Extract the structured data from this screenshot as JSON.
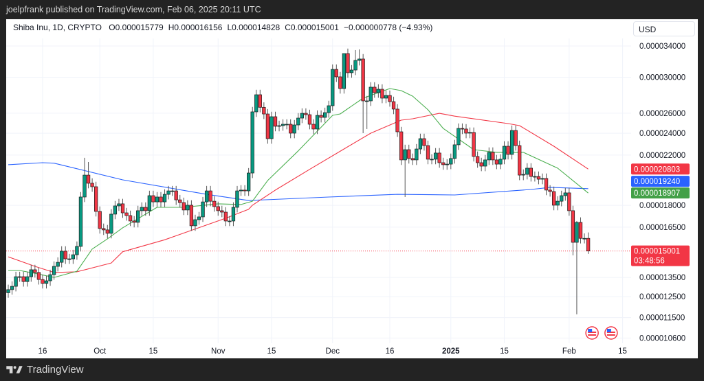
{
  "attribution": "joelpfrank published on TradingView.com, Feb 06, 2025 20:11 UTC",
  "legend": {
    "symbol": "Shiba Inu, 1D, CRYPTO",
    "open": "O0.000015779",
    "high": "H0.000016156",
    "low": "L0.000014828",
    "close": "C0.000015001",
    "change": "−0.000000778 (−4.93%)"
  },
  "currency": "USD",
  "footer_brand": "TradingView",
  "colors": {
    "up": "#089981",
    "down": "#f23645",
    "ma_blue": "#2962ff",
    "ma_red": "#f23645",
    "ma_green": "#4caf50"
  },
  "chart_data": {
    "type": "candlestick",
    "y_scale": "log",
    "ylim": [
      1.04e-05,
      3.5e-05
    ],
    "grid": true,
    "last_date": "2025-02-06",
    "first_open": 1.27e-05,
    "closes": [
      1.286e-05,
      1.303e-05,
      1.354e-05,
      1.354e-05,
      1.328e-05,
      1.354e-05,
      1.392e-05,
      1.377e-05,
      1.339e-05,
      1.318e-05,
      1.332e-05,
      1.365e-05,
      1.411e-05,
      1.434e-05,
      1.499e-05,
      1.454e-05,
      1.454e-05,
      1.478e-05,
      1.528e-05,
      1.861e-05,
      2.031e-05,
      1.966e-05,
      1.939e-05,
      1.757e-05,
      1.641e-05,
      1.632e-05,
      1.61e-05,
      1.738e-05,
      1.796e-05,
      1.811e-05,
      1.747e-05,
      1.728e-05,
      1.691e-05,
      1.682e-05,
      1.762e-05,
      1.786e-05,
      1.762e-05,
      1.871e-05,
      1.825e-05,
      1.861e-05,
      1.825e-05,
      1.881e-05,
      1.907e-05,
      1.907e-05,
      1.84e-05,
      1.82e-05,
      1.767e-05,
      1.801e-05,
      1.659e-05,
      1.7e-05,
      1.719e-05,
      1.825e-05,
      1.907e-05,
      1.83e-05,
      1.791e-05,
      1.762e-05,
      1.752e-05,
      1.691e-05,
      1.691e-05,
      1.786e-05,
      1.907e-05,
      1.913e-05,
      1.907e-05,
      2.048e-05,
      2.614e-05,
      2.799e-05,
      2.662e-05,
      2.592e-05,
      2.349e-05,
      2.564e-05,
      2.468e-05,
      2.474e-05,
      2.488e-05,
      2.488e-05,
      2.401e-05,
      2.481e-05,
      2.55e-05,
      2.599e-05,
      2.585e-05,
      2.488e-05,
      2.441e-05,
      2.578e-05,
      2.557e-05,
      2.606e-05,
      2.679e-05,
      3.097e-05,
      3.006e-05,
      2.869e-05,
      3.299e-05,
      3.056e-05,
      3.089e-05,
      3.21e-05,
      3.228e-05,
      2.731e-05,
      2.731e-05,
      2.885e-05,
      2.822e-05,
      2.861e-05,
      2.761e-05,
      2.791e-05,
      2.723e-05,
      2.643e-05,
      2.414e-05,
      2.158e-05,
      2.248e-05,
      2.17e-05,
      2.158e-05,
      2.254e-05,
      2.349e-05,
      2.285e-05,
      2.164e-05,
      2.164e-05,
      2.218e-05,
      2.134e-05,
      2.117e-05,
      2.122e-05,
      2.17e-05,
      2.292e-05,
      2.447e-05,
      2.441e-05,
      2.401e-05,
      2.408e-05,
      2.188e-05,
      2.134e-05,
      2.105e-05,
      2.158e-05,
      2.224e-05,
      2.158e-05,
      2.122e-05,
      2.164e-05,
      2.279e-05,
      2.206e-05,
      2.427e-05,
      2.285e-05,
      2.031e-05,
      2.037e-05,
      2.088e-05,
      2.02e-05,
      2.02e-05,
      1.998e-05,
      2.004e-05,
      1.913e-05,
      1.902e-05,
      1.801e-05,
      1.83e-05,
      1.871e-05,
      1.892e-05,
      1.762e-05,
      1.553e-05,
      1.682e-05,
      1.5779e-05,
      1.5779e-05,
      1.5001e-05
    ],
    "wick_overrides": [
      {
        "index": 20,
        "high": 2.176e-05
      },
      {
        "index": 21,
        "high": 2.14e-05
      },
      {
        "index": 88,
        "high": 3.299e-05
      },
      {
        "index": 91,
        "high": 3.345e-05
      },
      {
        "index": 92,
        "high": 3.354e-05
      },
      {
        "index": 93,
        "low": 2.401e-05
      },
      {
        "index": 94,
        "low": 2.441e-05
      },
      {
        "index": 104,
        "low": 1.861e-05
      },
      {
        "index": 148,
        "low": 1.474e-05
      },
      {
        "index": 149,
        "low": 1.165e-05,
        "high": 1.69e-05
      },
      {
        "index": 152,
        "high": 1.6156e-05,
        "low": 1.4828e-05
      }
    ],
    "moving_averages": [
      {
        "color": "#2962ff",
        "points": [
          [
            0,
            2.117e-05
          ],
          [
            9,
            2.134e-05
          ],
          [
            12,
            2.13e-05
          ],
          [
            30,
            1.993e-05
          ],
          [
            52,
            1.881e-05
          ],
          [
            63,
            1.835e-05
          ],
          [
            84,
            1.861e-05
          ],
          [
            102,
            1.881e-05
          ],
          [
            117,
            1.876e-05
          ],
          [
            137,
            1.918e-05
          ],
          [
            142,
            1.934e-05
          ],
          [
            152,
            1.924e-05
          ]
        ],
        "last_label": "0.000019240"
      },
      {
        "color": "#f23645",
        "points": [
          [
            0,
            1.466e-05
          ],
          [
            7,
            1.411e-05
          ],
          [
            12,
            1.377e-05
          ],
          [
            18,
            1.381e-05
          ],
          [
            27,
            1.43e-05
          ],
          [
            30,
            1.496e-05
          ],
          [
            41,
            1.569e-05
          ],
          [
            57,
            1.71e-05
          ],
          [
            63,
            1.772e-05
          ],
          [
            64,
            1.801e-05
          ],
          [
            70,
            1.913e-05
          ],
          [
            79,
            2.078e-05
          ],
          [
            88,
            2.254e-05
          ],
          [
            95,
            2.401e-05
          ],
          [
            103,
            2.529e-05
          ],
          [
            106,
            2.543e-05
          ],
          [
            113,
            2.599e-05
          ],
          [
            117,
            2.57e-05
          ],
          [
            131,
            2.495e-05
          ],
          [
            134,
            2.474e-05
          ],
          [
            143,
            2.279e-05
          ],
          [
            152,
            2.0803e-05
          ]
        ],
        "last_label": "0.000020803"
      },
      {
        "color": "#4caf50",
        "points": [
          [
            0,
            1.388e-05
          ],
          [
            3,
            1.388e-05
          ],
          [
            7,
            1.372e-05
          ],
          [
            12,
            1.35e-05
          ],
          [
            18,
            1.384e-05
          ],
          [
            22,
            1.512e-05
          ],
          [
            26,
            1.575e-05
          ],
          [
            30,
            1.646e-05
          ],
          [
            39,
            1.786e-05
          ],
          [
            46,
            1.786e-05
          ],
          [
            55,
            1.811e-05
          ],
          [
            61,
            1.806e-05
          ],
          [
            64,
            1.83e-05
          ],
          [
            68,
            1.988e-05
          ],
          [
            76,
            2.237e-05
          ],
          [
            85,
            2.578e-05
          ],
          [
            87,
            2.592e-05
          ],
          [
            93,
            2.761e-05
          ],
          [
            100,
            2.869e-05
          ],
          [
            103,
            2.845e-05
          ],
          [
            106,
            2.783e-05
          ],
          [
            110,
            2.636e-05
          ],
          [
            114,
            2.447e-05
          ],
          [
            122,
            2.248e-05
          ],
          [
            128,
            2.224e-05
          ],
          [
            135,
            2.224e-05
          ],
          [
            144,
            2.088e-05
          ],
          [
            152,
            1.8907e-05
          ]
        ],
        "last_label": "0.000018907"
      }
    ],
    "y_ticks": [
      {
        "value": 3.4e-05,
        "label": "0.000034000"
      },
      {
        "value": 3e-05,
        "label": "0.000030000"
      },
      {
        "value": 2.6e-05,
        "label": "0.000026000"
      },
      {
        "value": 2.4e-05,
        "label": "0.000024000"
      },
      {
        "value": 2.2e-05,
        "label": "0.000022000"
      },
      {
        "value": 1.8e-05,
        "label": "0.000018000"
      },
      {
        "value": 1.65e-05,
        "label": "0.000016500"
      },
      {
        "value": 1.35e-05,
        "label": "0.000013500"
      },
      {
        "value": 1.25e-05,
        "label": "0.000012500"
      },
      {
        "value": 1.15e-05,
        "label": "0.000011500"
      },
      {
        "value": 1.06e-05,
        "label": "0.000010600"
      }
    ],
    "x_ticks": [
      {
        "label": "16",
        "date": "2024-09-16"
      },
      {
        "label": "Oct",
        "date": "2024-10-01"
      },
      {
        "label": "15",
        "date": "2024-10-15"
      },
      {
        "label": "Nov",
        "date": "2024-11-01"
      },
      {
        "label": "15",
        "date": "2024-11-15"
      },
      {
        "label": "Dec",
        "date": "2024-12-01"
      },
      {
        "label": "16",
        "date": "2024-12-16"
      },
      {
        "label": "2025",
        "date": "2025-01-01",
        "bold": true
      },
      {
        "label": "15",
        "date": "2025-01-15"
      },
      {
        "label": "Feb",
        "date": "2025-02-01"
      },
      {
        "label": "15",
        "date": "2025-02-15"
      }
    ],
    "current_price": {
      "value": 1.5001e-05,
      "label": "0.000015001",
      "countdown": "03:48:56"
    },
    "event_markers": [
      {
        "icon": "us-flag-icon",
        "date": "2025-02-07"
      },
      {
        "icon": "us-flag-icon",
        "date": "2025-02-12"
      }
    ]
  }
}
